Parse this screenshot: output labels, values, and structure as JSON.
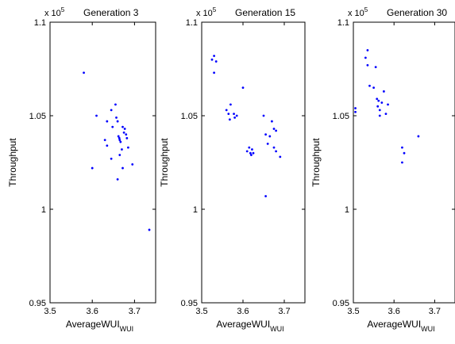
{
  "chart_data": [
    {
      "type": "scatter",
      "title": "Generation 3",
      "xlabel": "AverageWUI",
      "xlabel_sub": "WUI",
      "ylabel": "Throughput",
      "y_multiplier": "x 10",
      "y_multiplier_exp": "5",
      "xlim": [
        3.5,
        3.75
      ],
      "ylim": [
        0.95,
        1.1
      ],
      "xticks": [
        3.5,
        3.6,
        3.7
      ],
      "xtick_labels": [
        "3.5",
        "3.6",
        "3.7"
      ],
      "yticks": [
        0.95,
        1.0,
        1.05,
        1.1
      ],
      "ytick_labels": [
        "0.95",
        "1",
        "1.05",
        "1.1"
      ],
      "marker_color": "#0000ff",
      "points": [
        [
          3.58,
          1.073
        ],
        [
          3.6,
          1.022
        ],
        [
          3.61,
          1.05
        ],
        [
          3.635,
          1.047
        ],
        [
          3.63,
          1.037
        ],
        [
          3.635,
          1.034
        ],
        [
          3.645,
          1.053
        ],
        [
          3.648,
          1.044
        ],
        [
          3.655,
          1.056
        ],
        [
          3.657,
          1.049
        ],
        [
          3.66,
          1.047
        ],
        [
          3.662,
          1.039
        ],
        [
          3.664,
          1.038
        ],
        [
          3.665,
          1.037
        ],
        [
          3.667,
          1.036
        ],
        [
          3.67,
          1.032
        ],
        [
          3.672,
          1.044
        ],
        [
          3.675,
          1.041
        ],
        [
          3.677,
          1.043
        ],
        [
          3.68,
          1.04
        ],
        [
          3.682,
          1.038
        ],
        [
          3.685,
          1.033
        ],
        [
          3.665,
          1.029
        ],
        [
          3.645,
          1.027
        ],
        [
          3.66,
          1.016
        ],
        [
          3.672,
          1.022
        ],
        [
          3.695,
          1.024
        ],
        [
          3.735,
          0.989
        ]
      ]
    },
    {
      "type": "scatter",
      "title": "Generation 15",
      "xlabel": "AverageWUI",
      "xlabel_sub": "WUI",
      "ylabel": "Throughput",
      "y_multiplier": "x 10",
      "y_multiplier_exp": "5",
      "xlim": [
        3.5,
        3.75
      ],
      "ylim": [
        0.95,
        1.1
      ],
      "xticks": [
        3.5,
        3.6,
        3.7
      ],
      "xtick_labels": [
        "3.5",
        "3.6",
        "3.7"
      ],
      "yticks": [
        0.95,
        1.0,
        1.05,
        1.1
      ],
      "ytick_labels": [
        "0.95",
        "1",
        "1.05",
        "1.1"
      ],
      "marker_color": "#0000ff",
      "points": [
        [
          3.525,
          1.08
        ],
        [
          3.53,
          1.082
        ],
        [
          3.535,
          1.079
        ],
        [
          3.53,
          1.073
        ],
        [
          3.56,
          1.053
        ],
        [
          3.57,
          1.056
        ],
        [
          3.565,
          1.051
        ],
        [
          3.568,
          1.048
        ],
        [
          3.58,
          1.049
        ],
        [
          3.578,
          1.051
        ],
        [
          3.585,
          1.05
        ],
        [
          3.6,
          1.065
        ],
        [
          3.61,
          1.031
        ],
        [
          3.615,
          1.033
        ],
        [
          3.618,
          1.03
        ],
        [
          3.62,
          1.029
        ],
        [
          3.622,
          1.032
        ],
        [
          3.625,
          1.03
        ],
        [
          3.65,
          1.05
        ],
        [
          3.655,
          1.04
        ],
        [
          3.66,
          1.035
        ],
        [
          3.665,
          1.039
        ],
        [
          3.67,
          1.047
        ],
        [
          3.675,
          1.043
        ],
        [
          3.68,
          1.042
        ],
        [
          3.675,
          1.033
        ],
        [
          3.68,
          1.031
        ],
        [
          3.69,
          1.028
        ],
        [
          3.655,
          1.007
        ]
      ]
    },
    {
      "type": "scatter",
      "title": "Generation 30",
      "xlabel": "AverageWUI",
      "xlabel_sub": "WUI",
      "ylabel": "Throughput",
      "y_multiplier": "x 10",
      "y_multiplier_exp": "5",
      "xlim": [
        3.5,
        3.75
      ],
      "ylim": [
        0.95,
        1.1
      ],
      "xticks": [
        3.5,
        3.6,
        3.7
      ],
      "xtick_labels": [
        "3.5",
        "3.6",
        "3.7"
      ],
      "yticks": [
        0.95,
        1.0,
        1.05,
        1.1
      ],
      "ytick_labels": [
        "0.95",
        "1",
        "1.05",
        "1.1"
      ],
      "marker_color": "#0000ff",
      "points": [
        [
          3.505,
          1.054
        ],
        [
          3.505,
          1.052
        ],
        [
          3.53,
          1.081
        ],
        [
          3.535,
          1.085
        ],
        [
          3.535,
          1.077
        ],
        [
          3.54,
          1.066
        ],
        [
          3.55,
          1.065
        ],
        [
          3.555,
          1.076
        ],
        [
          3.558,
          1.059
        ],
        [
          3.56,
          1.055
        ],
        [
          3.562,
          1.058
        ],
        [
          3.565,
          1.053
        ],
        [
          3.57,
          1.057
        ],
        [
          3.575,
          1.063
        ],
        [
          3.565,
          1.05
        ],
        [
          3.58,
          1.051
        ],
        [
          3.585,
          1.056
        ],
        [
          3.62,
          1.033
        ],
        [
          3.625,
          1.03
        ],
        [
          3.62,
          1.025
        ],
        [
          3.66,
          1.039
        ]
      ]
    }
  ]
}
